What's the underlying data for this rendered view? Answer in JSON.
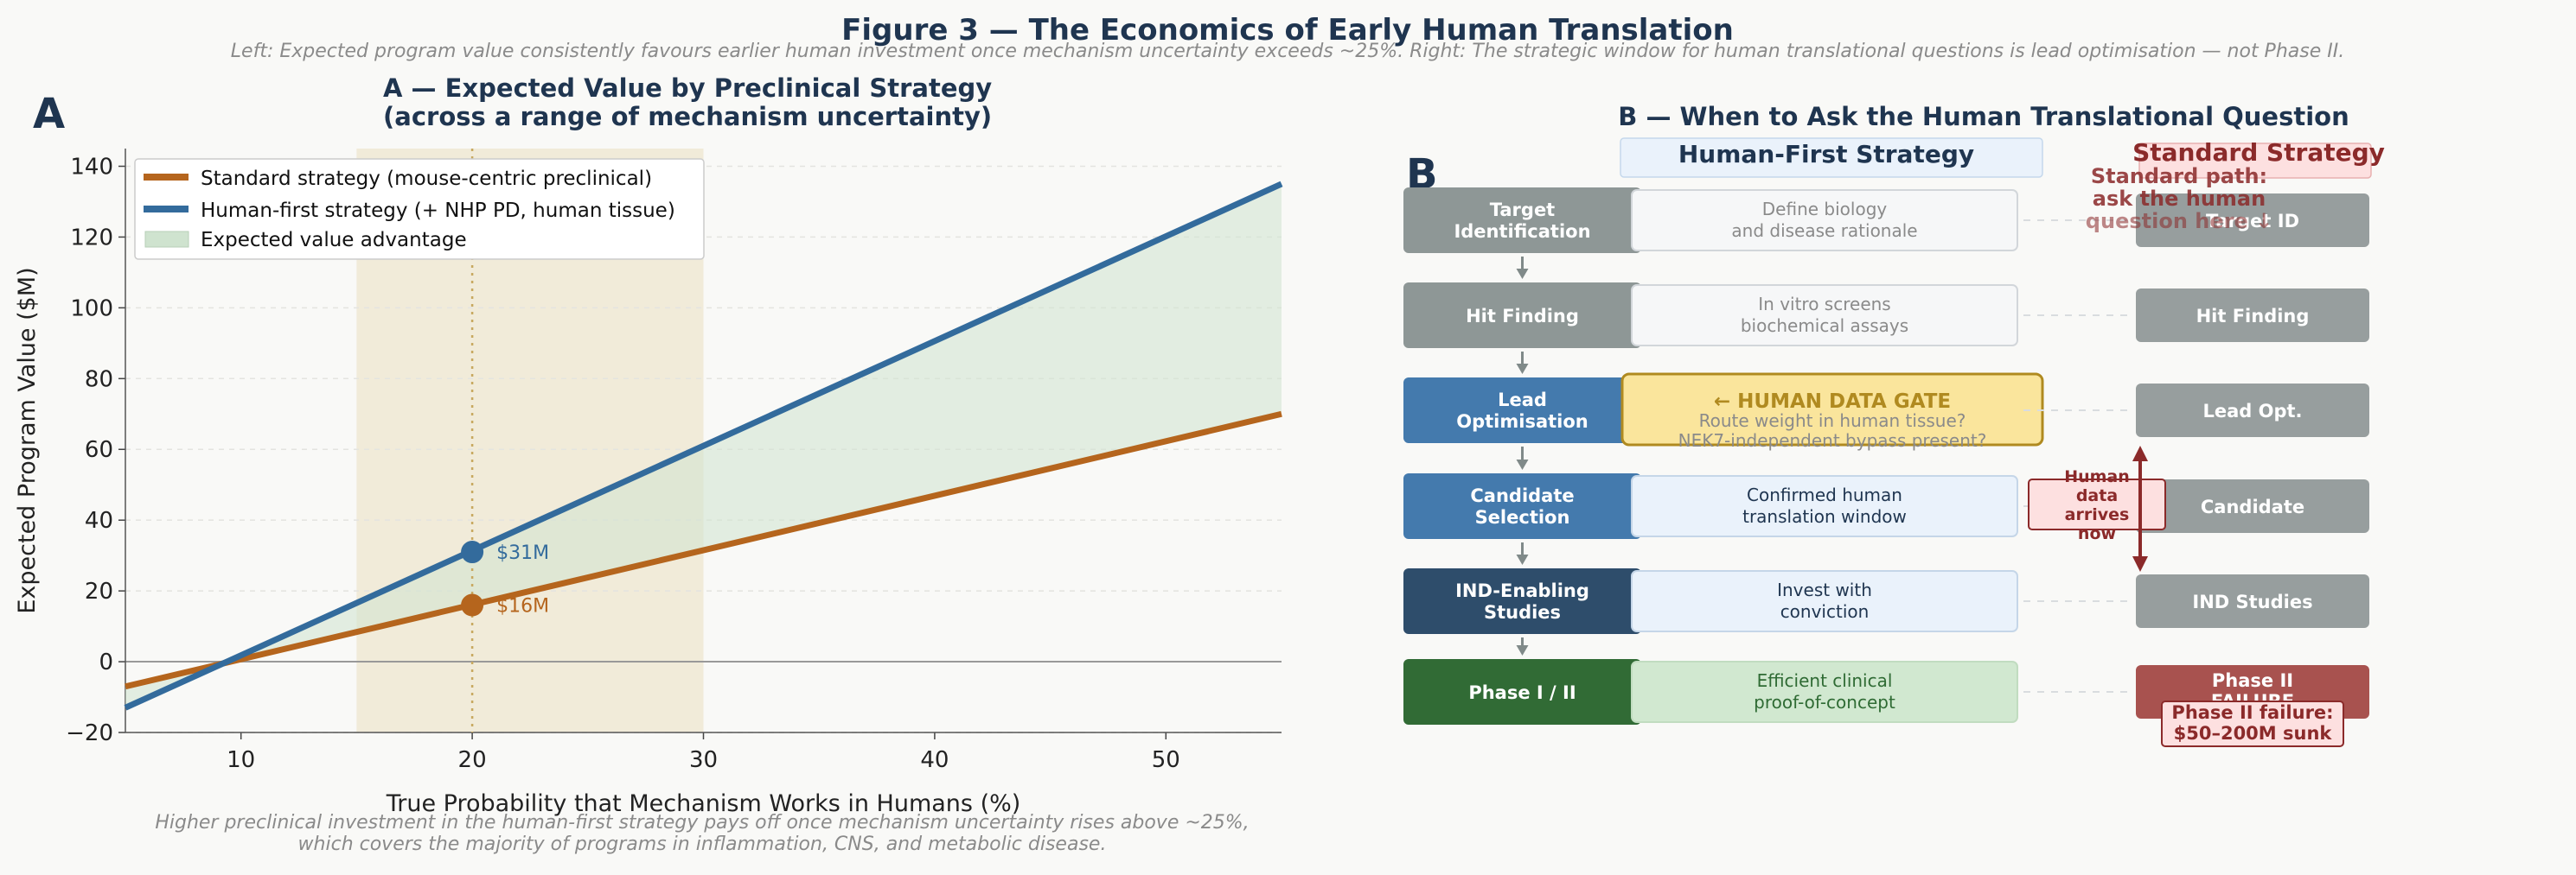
{
  "figure": {
    "title": "Figure 3 — The Economics of Early Human Translation",
    "subtitle": "Left: Expected program value consistently favours earlier human investment once mechanism uncertainty exceeds ~25%. Right: The strategic window for human translational questions is lead optimisation — not Phase II."
  },
  "panel_a": {
    "letter": "A",
    "title_line1": "A — Expected Value by Preclinical Strategy",
    "title_line2": "(across a range of mechanism uncertainty)",
    "caption_line1": "Higher preclinical investment in the human-first strategy pays off once mechanism uncertainty rises above ~25%,",
    "caption_line2": "which covers the majority of programs in inflammation, CNS, and metabolic disease."
  },
  "chart_data": {
    "type": "line",
    "title": "A — Expected Value by Preclinical Strategy (across a range of mechanism uncertainty)",
    "xlabel": "True Probability that Mechanism Works in Humans (%)",
    "ylabel": "Expected Program Value ($M)",
    "xlim": [
      5,
      55
    ],
    "ylim": [
      -20,
      145
    ],
    "xticks": [
      10,
      20,
      30,
      40,
      50
    ],
    "yticks": [
      -20,
      0,
      20,
      40,
      60,
      80,
      100,
      120,
      140
    ],
    "grid": "horizontal dashed",
    "legend_position": "top-left",
    "shaded_band": [
      15,
      30
    ],
    "marker_x": 20,
    "series": [
      {
        "name": "Standard strategy  (mouse-centric preclinical)",
        "color": "#b5651d",
        "x": [
          5,
          55
        ],
        "y": [
          -7,
          70
        ]
      },
      {
        "name": "Human-first strategy  (+ NHP PD, human tissue)",
        "color": "#336b9c",
        "x": [
          5,
          55
        ],
        "y": [
          -13,
          135
        ]
      }
    ],
    "fill": {
      "name": "Expected value advantage",
      "color": "#cfe3cf"
    },
    "points": [
      {
        "x": 20,
        "y": 31,
        "label": "$31M",
        "color": "#336b9c"
      },
      {
        "x": 20,
        "y": 16,
        "label": "$16M",
        "color": "#b5651d"
      }
    ]
  },
  "panel_b": {
    "letter": "B",
    "title": "B — When to Ask the Human Translational Question",
    "left_header": "Human-First Strategy",
    "right_header": "Standard Strategy",
    "standard_note_line1": "Standard path:",
    "standard_note_line2": "ask the human",
    "standard_note_line3": "question here ↓",
    "stages": [
      {
        "line1": "Target",
        "line2": "Identification",
        "color": "#8e9796"
      },
      {
        "line1": "Hit Finding",
        "line2": "",
        "color": "#8e9796"
      },
      {
        "line1": "Lead",
        "line2": "Optimisation",
        "color": "#447aad"
      },
      {
        "line1": "Candidate",
        "line2": "Selection",
        "color": "#447aad"
      },
      {
        "line1": "IND-Enabling",
        "line2": "Studies",
        "color": "#2e4d6b"
      },
      {
        "line1": "Phase I / II",
        "line2": "",
        "color": "#316b35"
      }
    ],
    "human_first_boxes": [
      {
        "line1": "Define biology",
        "line2": "and disease rationale"
      },
      {
        "line1": "In vitro screens",
        "line2": "biochemical assays"
      },
      {
        "line1": "Route weight in human tissue?",
        "line2": "NEK7-independent bypass present?"
      },
      {
        "line1": "Confirmed human",
        "line2": "translation window"
      },
      {
        "line1": "Invest with",
        "line2": "conviction"
      },
      {
        "line1": "Efficient clinical",
        "line2": "proof-of-concept"
      }
    ],
    "gate_label": "← HUMAN DATA GATE",
    "standard_stages": [
      {
        "line1": "Target ID",
        "line2": ""
      },
      {
        "line1": "Hit Finding",
        "line2": ""
      },
      {
        "line1": "Lead Opt.",
        "line2": ""
      },
      {
        "line1": "Candidate",
        "line2": ""
      },
      {
        "line1": "IND Studies",
        "line2": ""
      },
      {
        "line1": "Phase II",
        "line2": "FAILURE"
      }
    ],
    "human_data_note": [
      "Human",
      "data",
      "arrives",
      "now"
    ],
    "failure_note_line1": "Phase II failure:",
    "failure_note_line2": "$50–200M sunk"
  }
}
